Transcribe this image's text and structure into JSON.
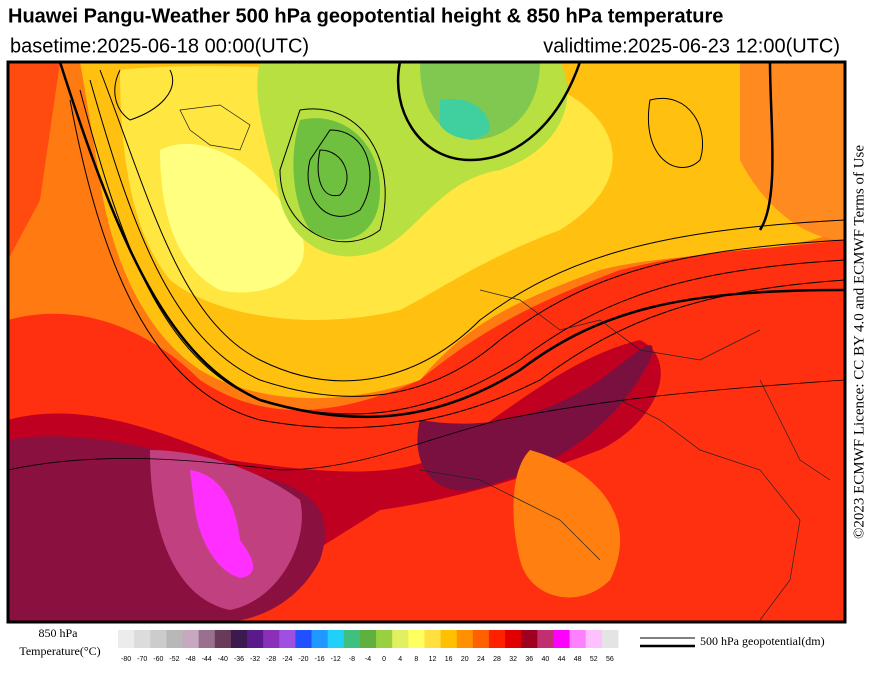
{
  "header": {
    "title": "Huawei Pangu-Weather 500 hPa geopotential height & 850 hPa temperature",
    "basetime": "basetime:2025-06-18 00:00(UTC)",
    "validtime": "validtime:2025-06-23 12:00(UTC)"
  },
  "licence": "©2023 ECMWF Licence: CC BY 4.0 and ECMWF Terms of Use",
  "legend": {
    "colorbar_title_1": "850 hPa",
    "colorbar_title_2": "Temperature(°C)",
    "ticks": [
      -80,
      -70,
      -60,
      -52,
      -48,
      -44,
      -40,
      -36,
      -32,
      -28,
      -24,
      -20,
      -16,
      -12,
      -8,
      -4,
      0,
      4,
      8,
      12,
      16,
      20,
      24,
      28,
      32,
      36,
      40,
      44,
      48,
      52,
      56
    ],
    "colors": [
      "#ececec",
      "#dcdcdc",
      "#cccccc",
      "#b8b8b8",
      "#c8a8c0",
      "#9a7090",
      "#6a3a5a",
      "#3c1a50",
      "#5a1a8a",
      "#8a30b8",
      "#a050e0",
      "#2050ff",
      "#2098ff",
      "#20d0f8",
      "#40c080",
      "#60b040",
      "#98d040",
      "#e0f060",
      "#ffff60",
      "#ffe040",
      "#ffc000",
      "#ff9000",
      "#ff6000",
      "#ff2000",
      "#e00000",
      "#a00020",
      "#c03070",
      "#ff00ff",
      "#ff80ff",
      "#ffc0ff",
      "#e4e4e4"
    ],
    "line_label": "500 hPa geopotential(dm)"
  }
}
